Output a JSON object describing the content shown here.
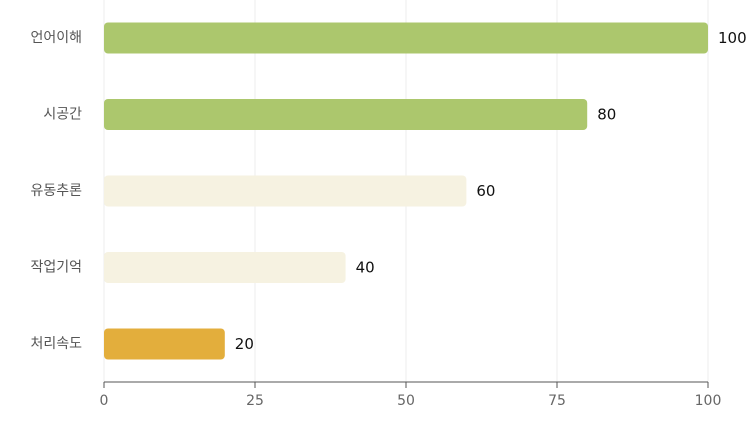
{
  "chart_data": {
    "type": "bar",
    "orientation": "horizontal",
    "categories": [
      "언어이해",
      "시공간",
      "유동추론",
      "작업기억",
      "처리속도"
    ],
    "values": [
      100,
      80,
      60,
      40,
      20
    ],
    "bar_colors": [
      "#acc76d",
      "#acc76d",
      "#f6f2e1",
      "#f6f2e1",
      "#e3ae3c"
    ],
    "value_labels": [
      "100",
      "80",
      "60",
      "40",
      "20"
    ],
    "xlim": [
      0,
      100
    ],
    "xticks": [
      0,
      25,
      50,
      75,
      100
    ],
    "xtick_labels": [
      "0",
      "25",
      "50",
      "75",
      "100"
    ],
    "grid": true,
    "title": "",
    "xlabel": "",
    "ylabel": ""
  }
}
